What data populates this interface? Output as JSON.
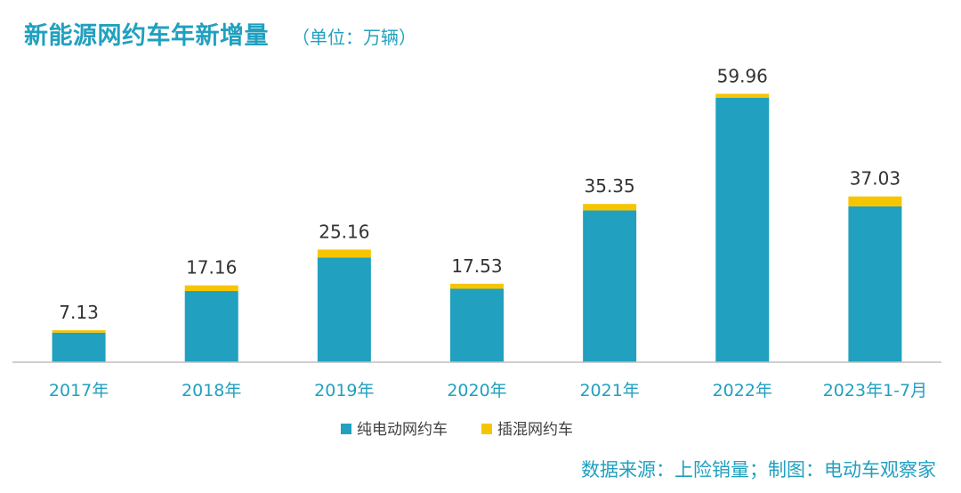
{
  "title": "新能源网约车年新增量",
  "unit": "（单位：万辆）",
  "source": "数据来源：上险销量；制图：电动车观察家",
  "colors": {
    "primary": "#21a0bf",
    "secondary": "#f7c500",
    "axis": "#bfbfbf",
    "tick_text": "#21a0bf",
    "label_text": "#333333"
  },
  "chart_data": {
    "type": "bar",
    "stacked": true,
    "categories": [
      "2017年",
      "2018年",
      "2019年",
      "2020年",
      "2021年",
      "2022年",
      "2023年1-7月"
    ],
    "series": [
      {
        "name": "纯电动网约车",
        "color": "#21a0bf",
        "values": [
          6.6,
          15.9,
          23.4,
          16.4,
          33.9,
          59.1,
          34.8
        ]
      },
      {
        "name": "插混网约车",
        "color": "#f7c500",
        "values": [
          0.53,
          1.26,
          1.76,
          1.13,
          1.45,
          0.86,
          2.23
        ]
      }
    ],
    "totals": [
      7.13,
      17.16,
      25.16,
      17.53,
      35.35,
      59.96,
      37.03
    ],
    "ylim": [
      0,
      65
    ],
    "grid": false,
    "legend": "bottom"
  }
}
